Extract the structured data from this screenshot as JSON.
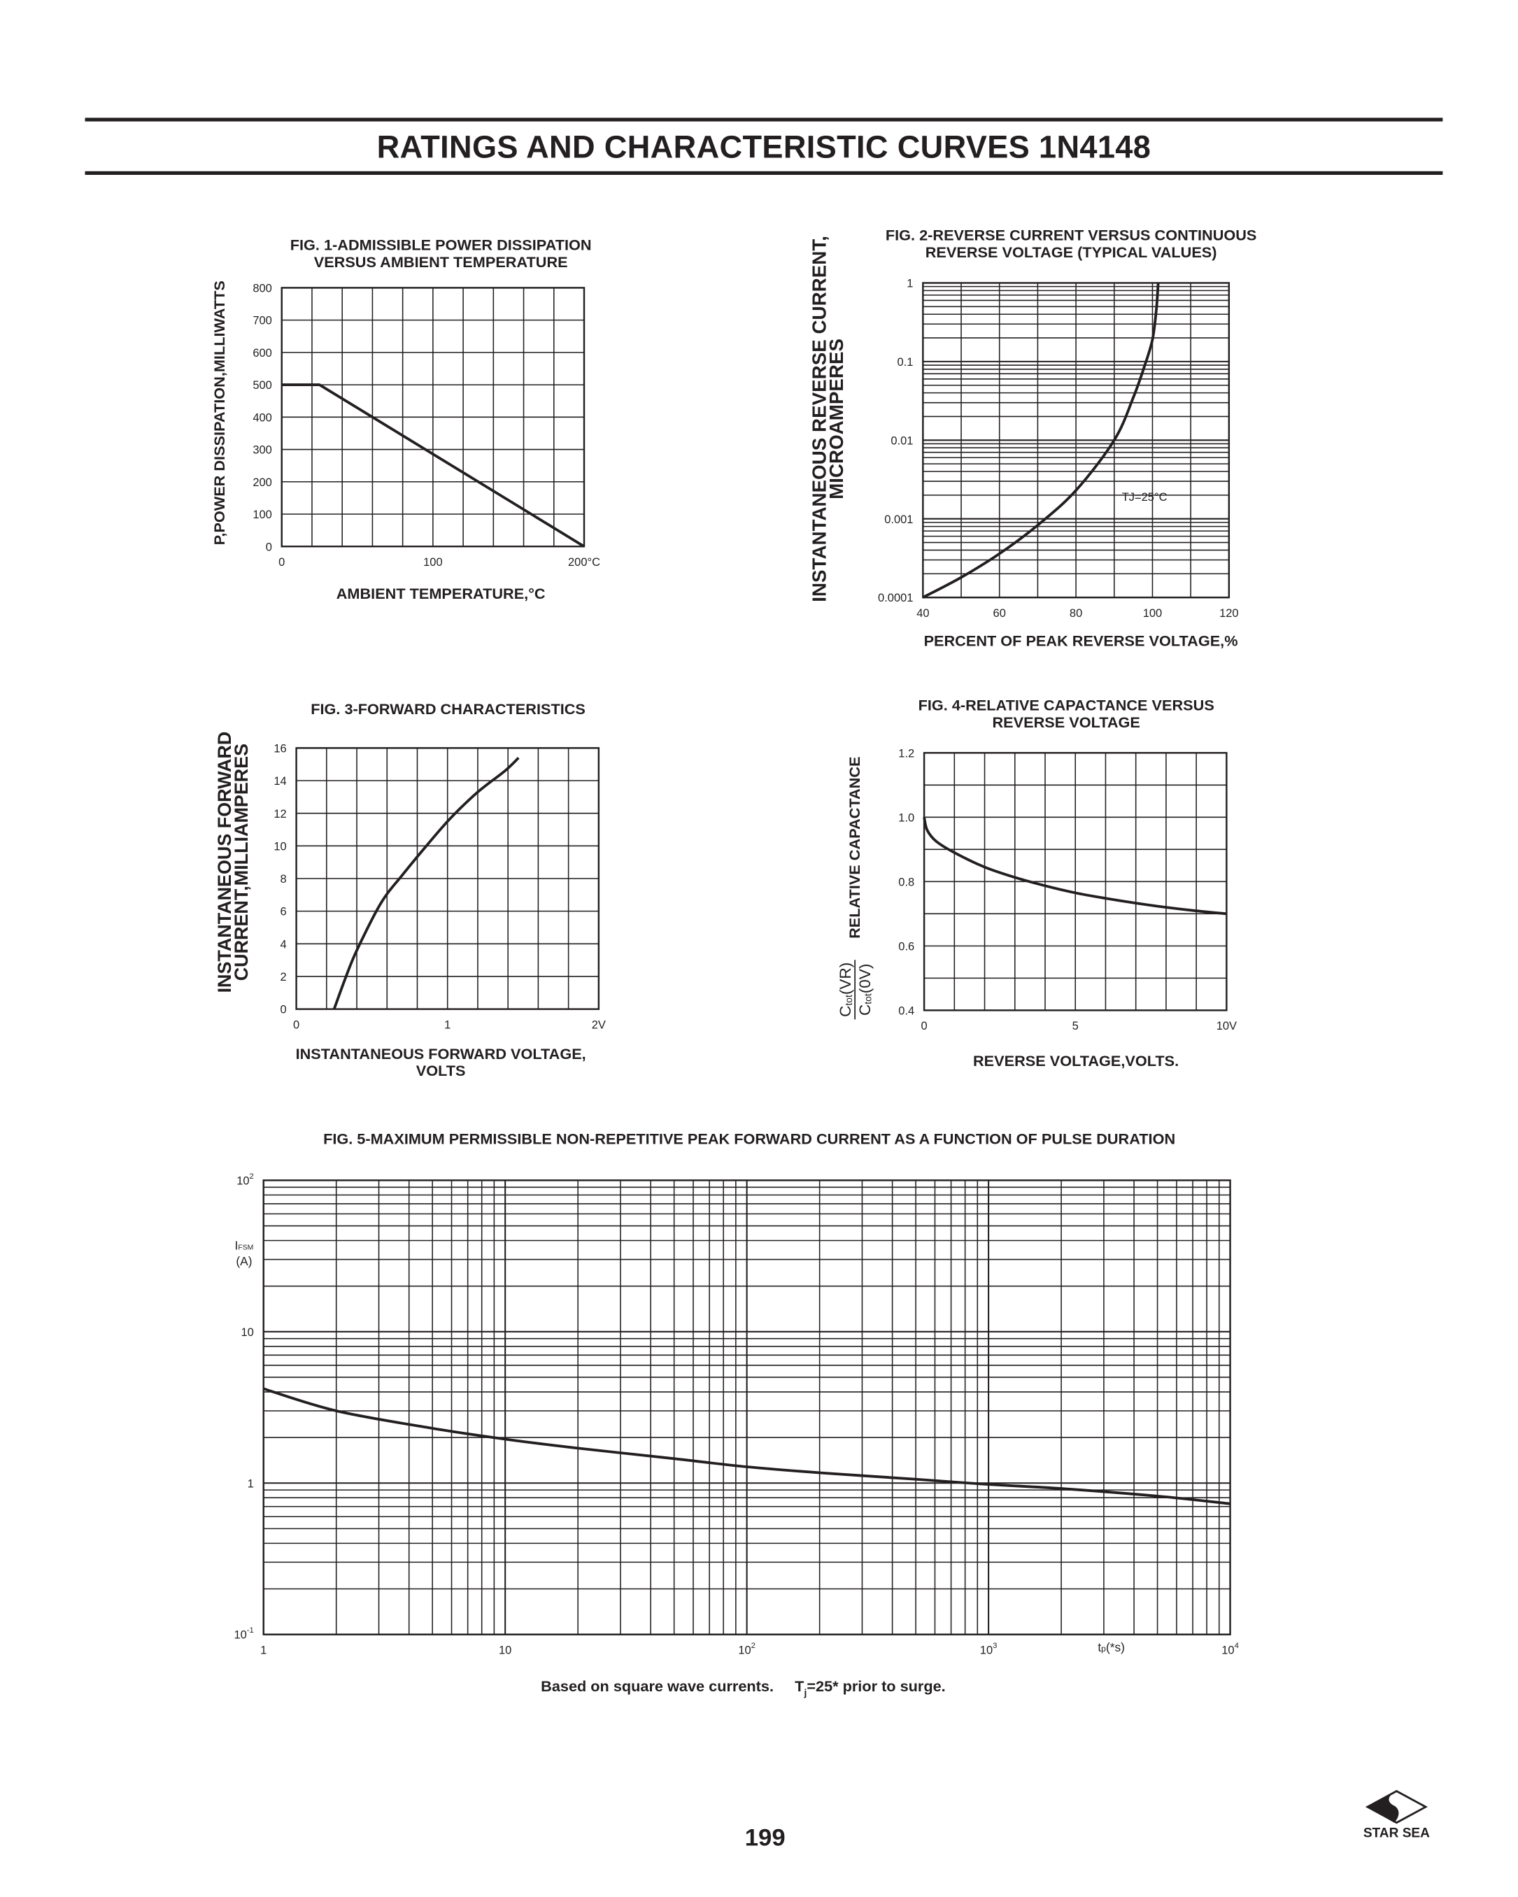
{
  "header": {
    "title": "RATINGS AND CHARACTERISTIC CURVES 1N4148"
  },
  "chart_data": [
    {
      "id": "fig1",
      "type": "line",
      "title_lines": [
        "FIG. 1-ADMISSIBLE POWER DISSIPATION",
        "VERSUS AMBIENT TEMPERATURE"
      ],
      "xlabel": "AMBIENT TEMPERATURE,°C",
      "ylabel_lines": [
        "P,POWER DISSIPATION,MILLIWATTS"
      ],
      "x_scale": "linear",
      "y_scale": "linear",
      "xlim": [
        0,
        200
      ],
      "ylim": [
        0,
        800
      ],
      "xgrid_step": 20,
      "ygrid_step": 100,
      "grid": true,
      "xticks": [
        {
          "value": 0,
          "label": "0"
        },
        {
          "value": 100,
          "label": "100"
        },
        {
          "value": 200,
          "label": "200°C"
        }
      ],
      "yticks": [
        {
          "value": 0,
          "label": "0"
        },
        {
          "value": 100,
          "label": "100"
        },
        {
          "value": 200,
          "label": "200"
        },
        {
          "value": 300,
          "label": "300"
        },
        {
          "value": 400,
          "label": "400"
        },
        {
          "value": 500,
          "label": "500"
        },
        {
          "value": 600,
          "label": "600"
        },
        {
          "value": 700,
          "label": "700"
        },
        {
          "value": 800,
          "label": "800"
        }
      ],
      "series": [
        {
          "name": "power-dissipation",
          "smooth": false,
          "x": [
            0,
            25,
            200
          ],
          "y": [
            500,
            500,
            0
          ]
        }
      ]
    },
    {
      "id": "fig2",
      "type": "line",
      "title_lines": [
        "FIG. 2-REVERSE CURRENT VERSUS CONTINUOUS",
        "REVERSE VOLTAGE (TYPICAL VALUES)"
      ],
      "xlabel": "PERCENT OF PEAK REVERSE VOLTAGE,%",
      "ylabel_lines": [
        "INSTANTANEOUS REVERSE CURRENT,",
        "MICROAMPERES"
      ],
      "x_scale": "linear",
      "y_scale": "log",
      "xlim": [
        40,
        120
      ],
      "ylim": [
        0.0001,
        1
      ],
      "xgrid_step": 10,
      "grid": true,
      "xticks": [
        {
          "value": 40,
          "label": "40"
        },
        {
          "value": 60,
          "label": "60"
        },
        {
          "value": 80,
          "label": "80"
        },
        {
          "value": 100,
          "label": "100"
        },
        {
          "value": 120,
          "label": "120"
        }
      ],
      "yticks": [
        {
          "value": 0.0001,
          "label": "0.0001"
        },
        {
          "value": 0.001,
          "label": "0.001"
        },
        {
          "value": 0.01,
          "label": "0.01"
        },
        {
          "value": 0.1,
          "label": "0.1"
        },
        {
          "value": 1,
          "label": "1"
        }
      ],
      "annotation": "TJ=25°C",
      "series": [
        {
          "name": "reverse-current",
          "smooth": true,
          "x": [
            40,
            50,
            60,
            70,
            80,
            90,
            95,
            98,
            100,
            101,
            101.5
          ],
          "y": [
            0.0001,
            0.00018,
            0.00036,
            0.00083,
            0.0023,
            0.01,
            0.035,
            0.09,
            0.19,
            0.45,
            1
          ]
        }
      ]
    },
    {
      "id": "fig3",
      "type": "line",
      "title_lines": [
        "FIG. 3-FORWARD CHARACTERISTICS"
      ],
      "xlabel_lines": [
        "INSTANTANEOUS FORWARD VOLTAGE,",
        "VOLTS"
      ],
      "ylabel_lines": [
        "INSTANTANEOUS FORWARD",
        "CURRENT,MILLIAMPERES"
      ],
      "x_scale": "linear",
      "y_scale": "linear",
      "xlim": [
        0,
        2
      ],
      "ylim": [
        0,
        16
      ],
      "xgrid_step": 0.2,
      "ygrid_step": 2,
      "grid": true,
      "xticks": [
        {
          "value": 0,
          "label": "0"
        },
        {
          "value": 1,
          "label": "1"
        },
        {
          "value": 2,
          "label": "2V"
        }
      ],
      "yticks": [
        {
          "value": 0,
          "label": "0"
        },
        {
          "value": 2,
          "label": "2"
        },
        {
          "value": 4,
          "label": "4"
        },
        {
          "value": 6,
          "label": "6"
        },
        {
          "value": 8,
          "label": "8"
        },
        {
          "value": 10,
          "label": "10"
        },
        {
          "value": 12,
          "label": "12"
        },
        {
          "value": 14,
          "label": "14"
        },
        {
          "value": 16,
          "label": "16"
        }
      ],
      "series": [
        {
          "name": "forward-current",
          "smooth": true,
          "x": [
            0.25,
            0.325,
            0.4,
            0.56,
            0.7,
            0.86,
            1.02,
            1.2,
            1.38,
            1.47
          ],
          "y": [
            0,
            1.9,
            3.6,
            6.5,
            8.2,
            10,
            11.7,
            13.3,
            14.6,
            15.4
          ]
        }
      ]
    },
    {
      "id": "fig4",
      "type": "line",
      "title_lines": [
        "FIG. 4-RELATIVE CAPACTANCE VERSUS",
        "REVERSE VOLTAGE"
      ],
      "xlabel": "REVERSE VOLTAGE,VOLTS.",
      "ylabel_lines": [
        "RELATIVE CAPACTANCE"
      ],
      "ylabel_fraction": {
        "num_c": "C",
        "num_sub": "tot",
        "num_arg": "(VR)",
        "den_c": "C",
        "den_sub": "tot",
        "den_arg": "(0V)"
      },
      "x_scale": "linear",
      "y_scale": "linear",
      "xlim": [
        0,
        10
      ],
      "ylim": [
        0.4,
        1.2
      ],
      "xgrid_step": 1,
      "ygrid_step": 0.1,
      "grid": true,
      "xticks": [
        {
          "value": 0,
          "label": "0"
        },
        {
          "value": 5,
          "label": "5"
        },
        {
          "value": 10,
          "label": "10V"
        }
      ],
      "yticks": [
        {
          "value": 0.4,
          "label": "0.4"
        },
        {
          "value": 0.6,
          "label": "0.6"
        },
        {
          "value": 0.8,
          "label": "0.8"
        },
        {
          "value": 1.0,
          "label": "1.0"
        },
        {
          "value": 1.2,
          "label": "1.2"
        }
      ],
      "series": [
        {
          "name": "relative-capacitance",
          "smooth": true,
          "x": [
            0,
            0.1,
            0.4,
            1,
            2,
            3,
            4,
            5,
            6,
            7,
            8,
            9,
            10
          ],
          "y": [
            1.0,
            0.96,
            0.925,
            0.89,
            0.845,
            0.813,
            0.787,
            0.765,
            0.748,
            0.733,
            0.72,
            0.709,
            0.7
          ]
        }
      ]
    },
    {
      "id": "fig5",
      "type": "line",
      "title_lines": [
        "FIG. 5-MAXIMUM PERMISSIBLE NON-REPETITIVE PEAK FORWARD CURRENT AS A FUNCTION OF PULSE DURATION"
      ],
      "xlabel": {
        "main": "t",
        "sub": "p",
        "rest": "(*s)"
      },
      "ylabel": {
        "main": "I",
        "sub": "FSM",
        "unit": "(A)"
      },
      "x_scale": "log",
      "y_scale": "log",
      "xlim": [
        1,
        10000
      ],
      "ylim": [
        0.1,
        100
      ],
      "grid": true,
      "xticks": [
        {
          "value": 1,
          "label": "1",
          "sup": ""
        },
        {
          "value": 10,
          "label": "10",
          "sup": ""
        },
        {
          "value": 100,
          "label": "10",
          "sup": "2"
        },
        {
          "value": 1000,
          "label": "10",
          "sup": "3"
        },
        {
          "value": 10000,
          "label": "10",
          "sup": "4"
        }
      ],
      "yticks": [
        {
          "value": 0.1,
          "label": "10",
          "sup": "-1"
        },
        {
          "value": 1,
          "label": "1",
          "sup": ""
        },
        {
          "value": 10,
          "label": "10",
          "sup": ""
        },
        {
          "value": 100,
          "label": "10",
          "sup": "2"
        }
      ],
      "note": {
        "part1": "Based on square wave currents.",
        "t": "T",
        "t_sub": "j",
        "part2": "=25* prior to surge."
      },
      "series": [
        {
          "name": "peak-forward-current",
          "smooth": true,
          "x": [
            1,
            2,
            5,
            10,
            20,
            50,
            100,
            200,
            500,
            1000,
            2000,
            5000,
            10000
          ],
          "y": [
            4.2,
            3.0,
            2.3,
            1.95,
            1.7,
            1.45,
            1.28,
            1.17,
            1.06,
            0.98,
            0.92,
            0.82,
            0.73
          ]
        }
      ]
    }
  ],
  "footer": {
    "page_number": "199",
    "brand": "STAR SEA"
  }
}
